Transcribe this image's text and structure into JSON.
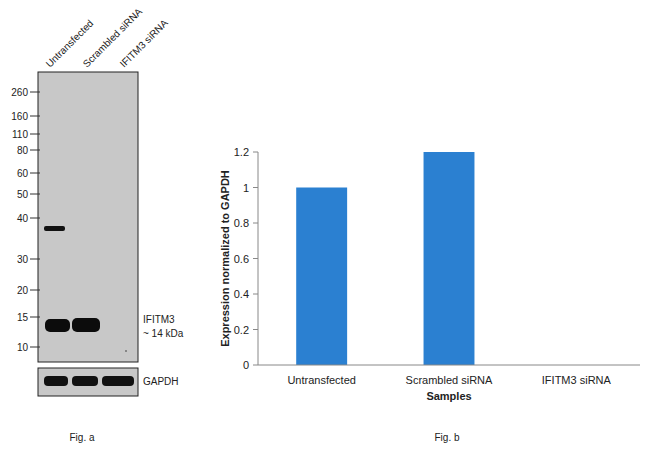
{
  "blot": {
    "lanes": [
      "Untransfected",
      "Scrambled siRNA",
      "IFITM3 siRNA"
    ],
    "markers": [
      260,
      160,
      110,
      80,
      60,
      50,
      40,
      30,
      20,
      15,
      10
    ],
    "band_label": [
      "IFITM3",
      "~ 14 kDa"
    ],
    "loading_control": "GAPDH",
    "caption": "Fig. a"
  },
  "chart_data": {
    "type": "bar",
    "caption": "Fig. b",
    "xlabel": "Samples",
    "ylabel": "Expression normalized to GAPDH",
    "categories": [
      "Untransfected",
      "Scrambled siRNA",
      "IFITM3 siRNA"
    ],
    "values": [
      1,
      1.2,
      0
    ],
    "color": "#2b80d1",
    "ylim": [
      0,
      1.2
    ],
    "yticks": [
      0,
      0.2,
      0.4,
      0.6,
      0.8,
      1,
      1.2
    ],
    "grid": false
  }
}
